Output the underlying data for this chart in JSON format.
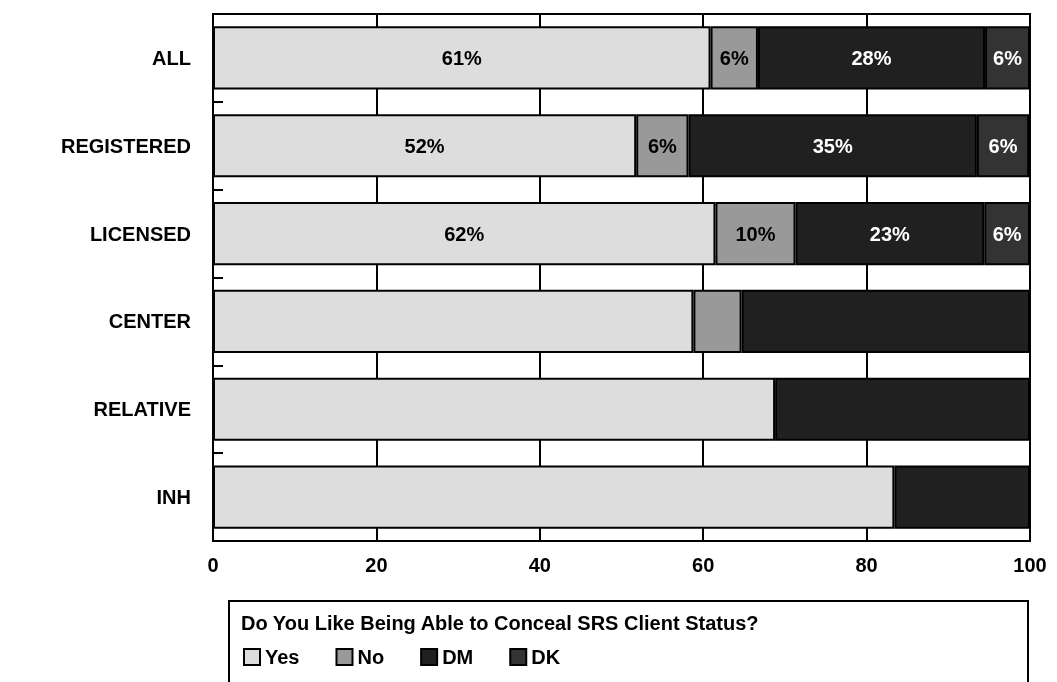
{
  "chart_data": {
    "type": "bar",
    "orientation": "horizontal",
    "stacked": true,
    "categories": [
      "ALL",
      "REGISTERED",
      "LICENSED",
      "CENTER",
      "RELATIVE",
      "INH"
    ],
    "series": [
      {
        "name": "Yes",
        "color": "#dddddd",
        "values": [
          60.9,
          51.8,
          61.5,
          58.8,
          68.8,
          83.4
        ],
        "value_labels": [
          "61%",
          "52%",
          "62%",
          null,
          null,
          null
        ]
      },
      {
        "name": "No",
        "color": "#999999",
        "values": [
          5.8,
          6.4,
          9.8,
          5.9,
          null,
          null
        ],
        "value_labels": [
          "6%",
          "6%",
          "10%",
          null,
          null,
          null
        ]
      },
      {
        "name": "DM",
        "color": "#202020",
        "values": [
          27.8,
          35.3,
          23.1,
          35.3,
          31.2,
          16.6
        ],
        "value_labels": [
          "28%",
          "35%",
          "23%",
          null,
          null,
          null
        ]
      },
      {
        "name": "DK",
        "color": "#333333",
        "values": [
          5.5,
          6.4,
          5.6,
          null,
          null,
          null
        ],
        "value_labels": [
          "6%",
          "6%",
          "6%",
          null,
          null,
          null
        ]
      }
    ],
    "xlim": [
      0,
      100
    ],
    "xticks": [
      0,
      20,
      40,
      60,
      80,
      100
    ],
    "grid": "x",
    "legend": "bottom",
    "legend_title": "Do You Like Being Able to Conceal SRS Client Status?"
  }
}
